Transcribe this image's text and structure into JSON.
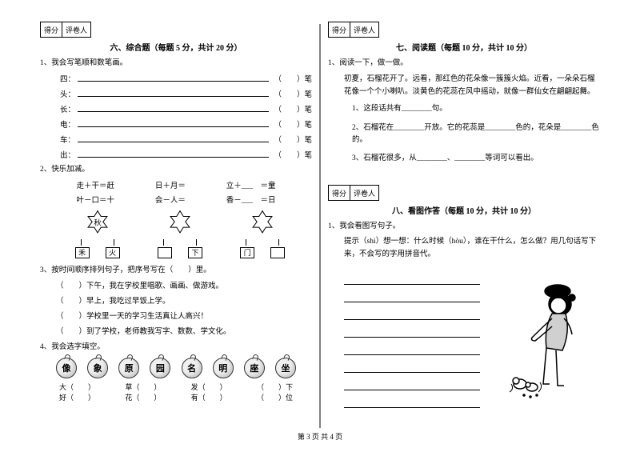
{
  "score_labels": {
    "score": "得分",
    "reviewer": "评卷人"
  },
  "section6": {
    "title": "六、综合题（每题 5 分，共计 20 分）",
    "q1_label": "1、我会写笔顺和数笔画。",
    "strokes": [
      {
        "char": "四：",
        "tail_open": "（",
        "tail_close": "）笔"
      },
      {
        "char": "头：",
        "tail_open": "（",
        "tail_close": "）笔"
      },
      {
        "char": "长：",
        "tail_open": "（",
        "tail_close": "）笔"
      },
      {
        "char": "电：",
        "tail_open": "（",
        "tail_close": "）笔"
      },
      {
        "char": "车：",
        "tail_open": "（",
        "tail_close": "）笔"
      },
      {
        "char": "出：",
        "tail_open": "（",
        "tail_close": "）笔"
      }
    ],
    "q2_label": "2、快乐加减。",
    "math_rows": [
      [
        "走＋干＝赶",
        "日＋月＝",
        "立＋___　＝童"
      ],
      [
        "叶－口＝十",
        "会－人＝",
        "香－___　＝日"
      ]
    ],
    "stars": [
      {
        "center": "秋",
        "subs": [
          "禾",
          "火"
        ]
      },
      {
        "center": "",
        "subs": [
          "",
          "下"
        ]
      },
      {
        "center": "",
        "subs": [
          "门",
          ""
        ]
      }
    ],
    "q3_label": "3、按时间顺序排列句子，把序号写在（　　）里。",
    "q3_items": [
      "（　　）下午，我在学校里唱歌、画画、做游戏。",
      "（　　）早上，我吃过早饭上学。",
      "（　　）学校里一天的学习生活真让人高兴！",
      "（　　）到了学校，老师教我写字、数数、学文化。"
    ],
    "q4_label": "4、我会选字填空。",
    "apples": [
      "像",
      "象",
      "原",
      "园",
      "名",
      "明",
      "座",
      "坐"
    ],
    "q4_rows": [
      [
        "大（　　）",
        "草（　　）",
        "发（　　）",
        "（　　）下"
      ],
      [
        "好（　　）",
        "花（　　）",
        "有（　　）",
        "（　　）位"
      ]
    ]
  },
  "section7": {
    "title": "七、阅读题（每题 10 分，共计 10 分）",
    "q1_label": "1、阅读一下，做一做。",
    "passage": "初夏，石榴花开了。远看，那红色的花朵像一簇簇火焰。近看，一朵朵石榴花像一个个小喇叭。淡黄色的花蕊在风中摇动，就像一群仙女在翩翩起舞。",
    "items": [
      "1、这段话共有________句。",
      "2、石榴花在________开放。它的花蕊是________色的，花朵是________色的。",
      "3、石榴花很多，从________、________等词可以看出。"
    ]
  },
  "section8": {
    "title": "八、看图作答（每题 10 分，共计 10 分）",
    "q1_label": "1、我会看图写句子。",
    "hint": "提示（shì）想一想：什么时候（hòu），谁在干什么，怎么做？用几句话写下来，不会写的字用拼音代。"
  },
  "footer": "第 3 页  共 4 页"
}
